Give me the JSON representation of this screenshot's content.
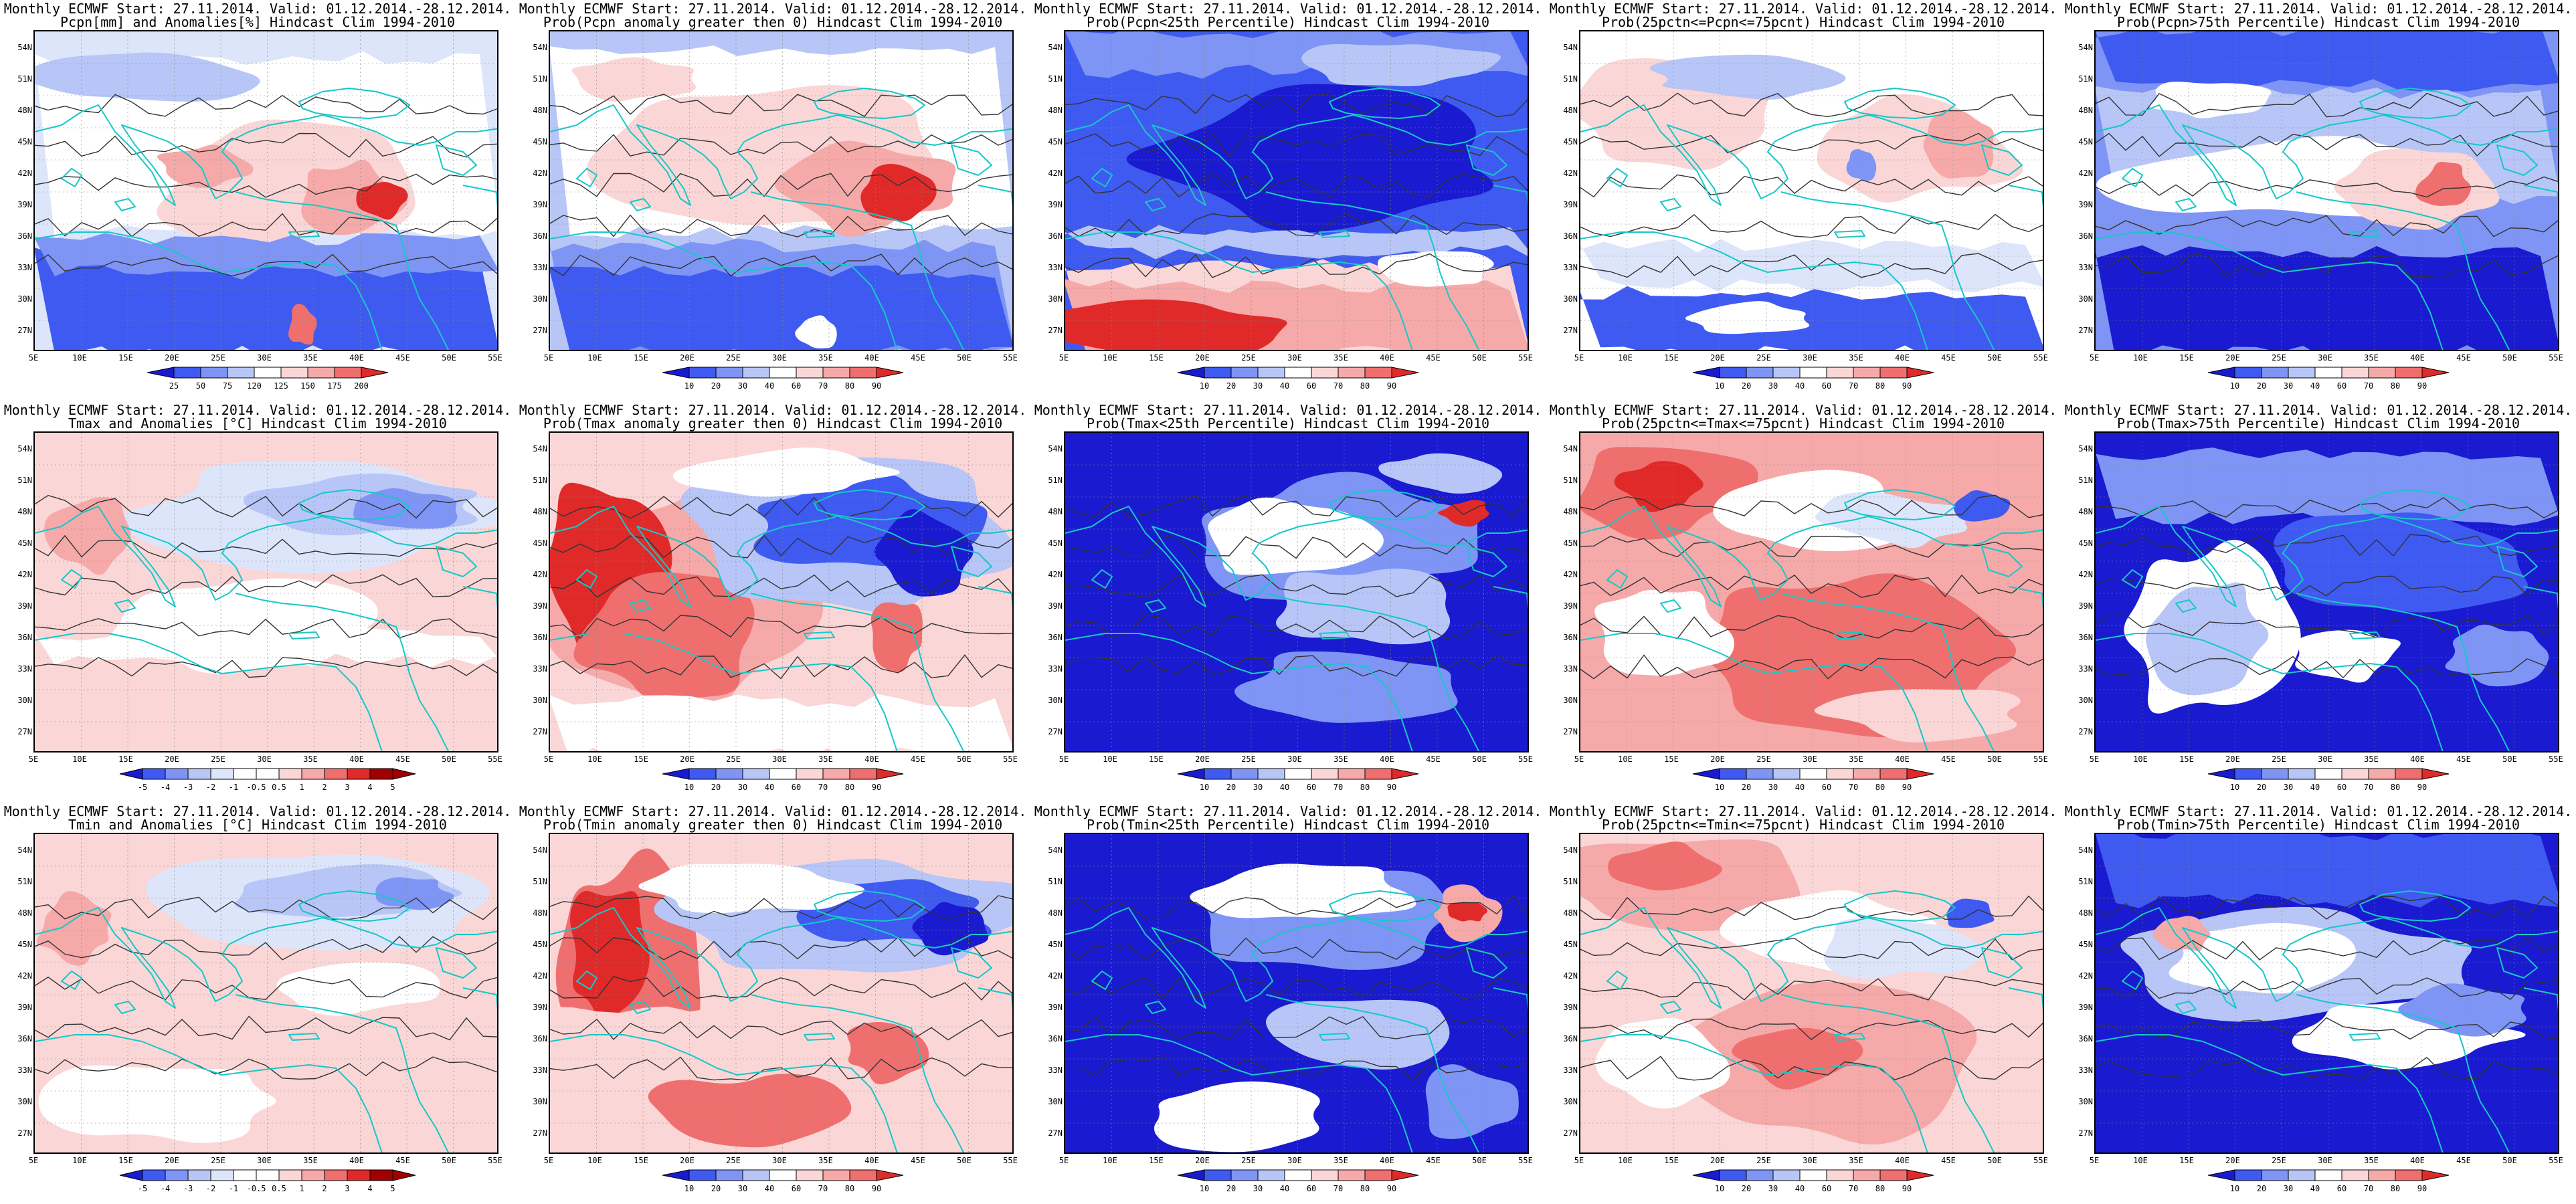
{
  "common": {
    "title_line1": "Monthly ECMWF Start: 27.11.2014. Valid: 01.12.2014.-28.12.2014.",
    "lat_labels": [
      "54N",
      "51N",
      "48N",
      "45N",
      "42N",
      "39N",
      "36N",
      "33N",
      "30N",
      "27N"
    ],
    "lon_labels": [
      "5E",
      "10E",
      "15E",
      "20E",
      "25E",
      "30E",
      "35E",
      "40E",
      "45E",
      "50E",
      "55E"
    ]
  },
  "colors": {
    "deep_blue": "#1a1ad0",
    "blue": "#3f5af0",
    "mid_blue": "#7e95f5",
    "light_blue": "#b7c6f7",
    "pale_blue": "#dde5fb",
    "white": "#ffffff",
    "pale_red": "#fbd6d6",
    "light_red": "#f6a9a9",
    "red": "#ef6f6f",
    "dark_red": "#e02a2a",
    "deepest_red": "#a00000",
    "coast": "#16c8c8",
    "contour": "#333333"
  },
  "colorbars": {
    "pcpn_anom": [
      "25",
      "50",
      "75",
      "120",
      "125",
      "150",
      "175",
      "200"
    ],
    "prob": [
      "10",
      "20",
      "30",
      "40",
      "60",
      "70",
      "80",
      "90"
    ],
    "temp_anom": [
      "-5",
      "-4",
      "-3",
      "-2",
      "-1",
      "-0.5",
      "0.5",
      "1",
      "2",
      "3",
      "4",
      "5"
    ]
  },
  "panels": [
    {
      "title2": "Pcpn[mm] and Anomalies[%] Hindcast Clim 1994-2010",
      "scheme": "pcpn_anom",
      "bar": "pcpn_anom"
    },
    {
      "title2": "Prob(Pcpn anomaly greater then 0) Hindcast Clim 1994-2010",
      "scheme": "pcpn_prob",
      "bar": "prob"
    },
    {
      "title2": "Prob(Pcpn<25th Percentile) Hindcast Clim 1994-2010",
      "scheme": "pcpn_p25",
      "bar": "prob"
    },
    {
      "title2": "Prob(25pctn<=Pcpn<=75pcnt) Hindcast Clim 1994-2010",
      "scheme": "pcpn_mid",
      "bar": "prob"
    },
    {
      "title2": "Prob(Pcpn>75th Percentile) Hindcast Clim 1994-2010",
      "scheme": "pcpn_p75",
      "bar": "prob"
    },
    {
      "title2": "Tmax and Anomalies [°C] Hindcast Clim 1994-2010",
      "scheme": "tmax_anom",
      "bar": "temp_anom"
    },
    {
      "title2": "Prob(Tmax anomaly greater then 0) Hindcast Clim 1994-2010",
      "scheme": "tmax_prob",
      "bar": "prob"
    },
    {
      "title2": "Prob(Tmax<25th Percentile) Hindcast Clim 1994-2010",
      "scheme": "tmax_p25",
      "bar": "prob"
    },
    {
      "title2": "Prob(25pctn<=Tmax<=75pcnt) Hindcast Clim 1994-2010",
      "scheme": "tmax_mid",
      "bar": "prob"
    },
    {
      "title2": "Prob(Tmax>75th Percentile) Hindcast Clim 1994-2010",
      "scheme": "tmax_p75",
      "bar": "prob"
    },
    {
      "title2": "Tmin and Anomalies [°C] Hindcast Clim 1994-2010",
      "scheme": "tmin_anom",
      "bar": "temp_anom"
    },
    {
      "title2": "Prob(Tmin anomaly greater then 0) Hindcast Clim 1994-2010",
      "scheme": "tmin_prob",
      "bar": "prob"
    },
    {
      "title2": "Prob(Tmin<25th Percentile) Hindcast Clim 1994-2010",
      "scheme": "tmin_p25",
      "bar": "prob"
    },
    {
      "title2": "Prob(25pctn<=Tmin<=75pcnt) Hindcast Clim 1994-2010",
      "scheme": "tmin_mid",
      "bar": "prob"
    },
    {
      "title2": "Prob(Tmin>75th Percentile) Hindcast Clim 1994-2010",
      "scheme": "tmin_p75",
      "bar": "prob"
    }
  ]
}
